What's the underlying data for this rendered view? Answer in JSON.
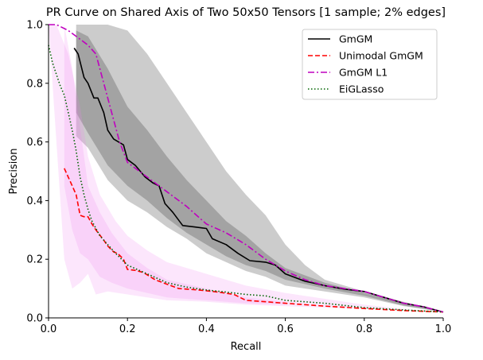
{
  "chart_data": {
    "type": "line",
    "title": "PR Curve on Shared Axis of Two 50x50 Tensors [1 sample; 2% edges]",
    "xlabel": "Recall",
    "ylabel": "Precision",
    "xlim": [
      0,
      1
    ],
    "ylim": [
      0,
      1
    ],
    "xticks": [
      "0.0",
      "0.2",
      "0.4",
      "0.6",
      "0.8",
      "1.0"
    ],
    "yticks": [
      "0.0",
      "0.2",
      "0.4",
      "0.6",
      "0.8",
      "1.0"
    ],
    "legend_position": "top-right",
    "bands": [
      {
        "series": "GmGM",
        "color": "#000000",
        "upper": [
          [
            0.07,
            1.0
          ],
          [
            0.1,
            1.0
          ],
          [
            0.15,
            1.0
          ],
          [
            0.2,
            0.98
          ],
          [
            0.25,
            0.9
          ],
          [
            0.3,
            0.8
          ],
          [
            0.35,
            0.7
          ],
          [
            0.4,
            0.6
          ],
          [
            0.45,
            0.5
          ],
          [
            0.5,
            0.42
          ],
          [
            0.55,
            0.35
          ],
          [
            0.6,
            0.25
          ],
          [
            0.65,
            0.18
          ],
          [
            0.7,
            0.13
          ],
          [
            0.8,
            0.09
          ],
          [
            0.9,
            0.055
          ],
          [
            1.0,
            0.02
          ]
        ],
        "lower": [
          [
            1.0,
            0.02
          ],
          [
            0.9,
            0.04
          ],
          [
            0.8,
            0.07
          ],
          [
            0.7,
            0.09
          ],
          [
            0.6,
            0.11
          ],
          [
            0.55,
            0.14
          ],
          [
            0.5,
            0.16
          ],
          [
            0.45,
            0.19
          ],
          [
            0.4,
            0.22
          ],
          [
            0.35,
            0.27
          ],
          [
            0.3,
            0.31
          ],
          [
            0.25,
            0.36
          ],
          [
            0.2,
            0.4
          ],
          [
            0.15,
            0.47
          ],
          [
            0.1,
            0.58
          ],
          [
            0.07,
            0.62
          ]
        ],
        "inner_upper": [
          [
            0.07,
            0.98
          ],
          [
            0.1,
            0.96
          ],
          [
            0.15,
            0.85
          ],
          [
            0.2,
            0.72
          ],
          [
            0.25,
            0.64
          ],
          [
            0.3,
            0.55
          ],
          [
            0.35,
            0.47
          ],
          [
            0.4,
            0.4
          ],
          [
            0.45,
            0.33
          ],
          [
            0.5,
            0.28
          ],
          [
            0.55,
            0.22
          ],
          [
            0.6,
            0.17
          ],
          [
            0.7,
            0.12
          ],
          [
            0.8,
            0.085
          ],
          [
            0.9,
            0.05
          ],
          [
            1.0,
            0.02
          ]
        ],
        "inner_lower": [
          [
            1.0,
            0.02
          ],
          [
            0.9,
            0.042
          ],
          [
            0.8,
            0.075
          ],
          [
            0.7,
            0.1
          ],
          [
            0.6,
            0.13
          ],
          [
            0.55,
            0.16
          ],
          [
            0.5,
            0.18
          ],
          [
            0.45,
            0.21
          ],
          [
            0.4,
            0.25
          ],
          [
            0.35,
            0.29
          ],
          [
            0.3,
            0.34
          ],
          [
            0.25,
            0.4
          ],
          [
            0.2,
            0.45
          ],
          [
            0.15,
            0.52
          ],
          [
            0.1,
            0.63
          ],
          [
            0.07,
            0.7
          ]
        ]
      },
      {
        "series": "Unimodal GmGM",
        "color": "#ee82ee",
        "upper": [
          [
            0.0,
            1.0
          ],
          [
            0.02,
            1.0
          ],
          [
            0.05,
            0.9
          ],
          [
            0.08,
            0.72
          ],
          [
            0.1,
            0.55
          ],
          [
            0.13,
            0.42
          ],
          [
            0.17,
            0.33
          ],
          [
            0.2,
            0.28
          ],
          [
            0.25,
            0.23
          ],
          [
            0.3,
            0.19
          ],
          [
            0.4,
            0.15
          ],
          [
            0.5,
            0.11
          ],
          [
            0.6,
            0.085
          ],
          [
            0.7,
            0.065
          ],
          [
            0.8,
            0.045
          ],
          [
            0.9,
            0.03
          ],
          [
            1.0,
            0.02
          ]
        ],
        "lower": [
          [
            1.0,
            0.02
          ],
          [
            0.9,
            0.025
          ],
          [
            0.8,
            0.03
          ],
          [
            0.7,
            0.035
          ],
          [
            0.6,
            0.04
          ],
          [
            0.5,
            0.045
          ],
          [
            0.4,
            0.055
          ],
          [
            0.3,
            0.06
          ],
          [
            0.25,
            0.07
          ],
          [
            0.2,
            0.08
          ],
          [
            0.15,
            0.09
          ],
          [
            0.12,
            0.08
          ],
          [
            0.1,
            0.15
          ],
          [
            0.08,
            0.12
          ],
          [
            0.06,
            0.1
          ],
          [
            0.05,
            0.15
          ],
          [
            0.04,
            0.2
          ]
        ],
        "inner_upper": [
          [
            0.04,
            1.0
          ],
          [
            0.06,
            0.85
          ],
          [
            0.08,
            0.65
          ],
          [
            0.1,
            0.45
          ],
          [
            0.13,
            0.36
          ],
          [
            0.16,
            0.29
          ],
          [
            0.2,
            0.22
          ],
          [
            0.25,
            0.17
          ],
          [
            0.3,
            0.13
          ],
          [
            0.4,
            0.1
          ],
          [
            0.5,
            0.07
          ],
          [
            0.6,
            0.055
          ]
        ],
        "inner_lower": [
          [
            0.6,
            0.045
          ],
          [
            0.5,
            0.05
          ],
          [
            0.4,
            0.06
          ],
          [
            0.3,
            0.07
          ],
          [
            0.25,
            0.085
          ],
          [
            0.2,
            0.1
          ],
          [
            0.16,
            0.12
          ],
          [
            0.13,
            0.14
          ],
          [
            0.1,
            0.2
          ],
          [
            0.08,
            0.22
          ],
          [
            0.06,
            0.3
          ],
          [
            0.04,
            0.45
          ]
        ]
      }
    ],
    "series": [
      {
        "name": "GmGM",
        "color": "#000000",
        "dash": "solid",
        "points": [
          [
            0.065,
            0.92
          ],
          [
            0.075,
            0.9
          ],
          [
            0.09,
            0.82
          ],
          [
            0.1,
            0.8
          ],
          [
            0.115,
            0.75
          ],
          [
            0.125,
            0.75
          ],
          [
            0.14,
            0.7
          ],
          [
            0.15,
            0.64
          ],
          [
            0.165,
            0.61
          ],
          [
            0.19,
            0.59
          ],
          [
            0.2,
            0.54
          ],
          [
            0.22,
            0.52
          ],
          [
            0.245,
            0.48
          ],
          [
            0.265,
            0.46
          ],
          [
            0.28,
            0.45
          ],
          [
            0.295,
            0.39
          ],
          [
            0.315,
            0.36
          ],
          [
            0.34,
            0.315
          ],
          [
            0.37,
            0.31
          ],
          [
            0.4,
            0.305
          ],
          [
            0.415,
            0.27
          ],
          [
            0.45,
            0.25
          ],
          [
            0.48,
            0.22
          ],
          [
            0.51,
            0.195
          ],
          [
            0.55,
            0.19
          ],
          [
            0.575,
            0.18
          ],
          [
            0.6,
            0.15
          ],
          [
            0.65,
            0.125
          ],
          [
            0.7,
            0.11
          ],
          [
            0.75,
            0.098
          ],
          [
            0.8,
            0.09
          ],
          [
            0.85,
            0.07
          ],
          [
            0.9,
            0.05
          ],
          [
            0.95,
            0.038
          ],
          [
            1.0,
            0.02
          ]
        ]
      },
      {
        "name": "Unimodal GmGM",
        "color": "#ff0000",
        "dash": "dashed",
        "points": [
          [
            0.04,
            0.51
          ],
          [
            0.05,
            0.48
          ],
          [
            0.06,
            0.45
          ],
          [
            0.07,
            0.42
          ],
          [
            0.08,
            0.35
          ],
          [
            0.09,
            0.345
          ],
          [
            0.1,
            0.345
          ],
          [
            0.11,
            0.32
          ],
          [
            0.12,
            0.3
          ],
          [
            0.14,
            0.265
          ],
          [
            0.15,
            0.245
          ],
          [
            0.165,
            0.225
          ],
          [
            0.175,
            0.22
          ],
          [
            0.19,
            0.2
          ],
          [
            0.2,
            0.165
          ],
          [
            0.22,
            0.162
          ],
          [
            0.24,
            0.155
          ],
          [
            0.27,
            0.13
          ],
          [
            0.3,
            0.115
          ],
          [
            0.33,
            0.1
          ],
          [
            0.38,
            0.095
          ],
          [
            0.43,
            0.088
          ],
          [
            0.47,
            0.08
          ],
          [
            0.5,
            0.06
          ],
          [
            0.55,
            0.055
          ],
          [
            0.6,
            0.05
          ],
          [
            0.7,
            0.04
          ],
          [
            0.8,
            0.032
          ],
          [
            0.9,
            0.025
          ],
          [
            1.0,
            0.02
          ]
        ]
      },
      {
        "name": "GmGM L1",
        "color": "#bf00bf",
        "dash": "dashdot",
        "points": [
          [
            0.0,
            1.0
          ],
          [
            0.02,
            1.0
          ],
          [
            0.05,
            0.98
          ],
          [
            0.08,
            0.95
          ],
          [
            0.1,
            0.93
          ],
          [
            0.12,
            0.9
          ],
          [
            0.15,
            0.75
          ],
          [
            0.18,
            0.6
          ],
          [
            0.2,
            0.53
          ],
          [
            0.25,
            0.48
          ],
          [
            0.3,
            0.43
          ],
          [
            0.35,
            0.38
          ],
          [
            0.4,
            0.32
          ],
          [
            0.45,
            0.29
          ],
          [
            0.5,
            0.25
          ],
          [
            0.55,
            0.2
          ],
          [
            0.6,
            0.16
          ],
          [
            0.65,
            0.13
          ],
          [
            0.7,
            0.11
          ],
          [
            0.8,
            0.09
          ],
          [
            0.85,
            0.07
          ],
          [
            0.9,
            0.05
          ],
          [
            0.95,
            0.038
          ],
          [
            1.0,
            0.02
          ]
        ]
      },
      {
        "name": "EiGLasso",
        "color": "#006400",
        "dash": "dotted",
        "points": [
          [
            0.0,
            0.93
          ],
          [
            0.01,
            0.87
          ],
          [
            0.02,
            0.83
          ],
          [
            0.03,
            0.79
          ],
          [
            0.04,
            0.76
          ],
          [
            0.05,
            0.7
          ],
          [
            0.06,
            0.64
          ],
          [
            0.07,
            0.57
          ],
          [
            0.08,
            0.48
          ],
          [
            0.09,
            0.42
          ],
          [
            0.1,
            0.37
          ],
          [
            0.11,
            0.33
          ],
          [
            0.13,
            0.28
          ],
          [
            0.15,
            0.25
          ],
          [
            0.17,
            0.22
          ],
          [
            0.2,
            0.18
          ],
          [
            0.25,
            0.15
          ],
          [
            0.3,
            0.12
          ],
          [
            0.35,
            0.105
          ],
          [
            0.4,
            0.095
          ],
          [
            0.45,
            0.088
          ],
          [
            0.5,
            0.08
          ],
          [
            0.55,
            0.075
          ],
          [
            0.6,
            0.06
          ],
          [
            0.7,
            0.05
          ],
          [
            0.8,
            0.035
          ],
          [
            0.9,
            0.027
          ],
          [
            1.0,
            0.02
          ]
        ]
      }
    ]
  }
}
